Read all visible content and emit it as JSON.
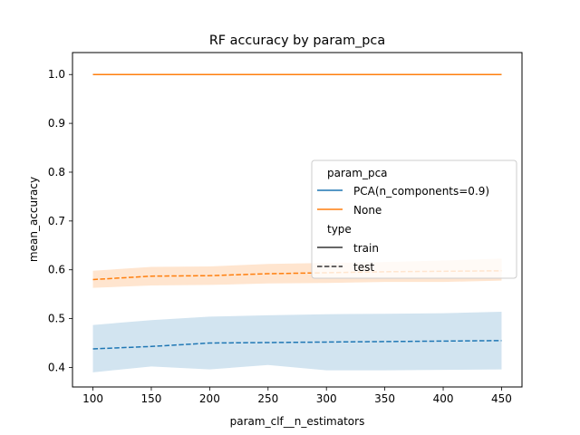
{
  "chart_data": {
    "type": "line",
    "title": "RF accuracy by param_pca",
    "xlabel": "param_clf__n_estimators",
    "ylabel": "mean_accuracy",
    "xlim": [
      82.5,
      467.5
    ],
    "ylim": [
      0.36,
      1.045
    ],
    "x_ticks": [
      100,
      150,
      200,
      250,
      300,
      350,
      400,
      450
    ],
    "x_tick_labels": [
      "100",
      "150",
      "200",
      "250",
      "300",
      "350",
      "400",
      "450"
    ],
    "y_ticks": [
      0.4,
      0.5,
      0.6,
      0.7,
      0.8,
      0.9,
      1.0
    ],
    "y_tick_labels": [
      "0.4",
      "0.5",
      "0.6",
      "0.7",
      "0.8",
      "0.9",
      "1.0"
    ],
    "grid": false,
    "x": [
      100,
      150,
      200,
      250,
      300,
      350,
      400,
      450
    ],
    "series": [
      {
        "name": "PCA(n_components=0.9)",
        "type": "train",
        "color": "#1f77b4",
        "dash": "solid",
        "values": [
          1.0,
          1.0,
          1.0,
          1.0,
          1.0,
          1.0,
          1.0,
          1.0
        ]
      },
      {
        "name": "None",
        "type": "train",
        "color": "#ff7f0e",
        "dash": "solid",
        "values": [
          1.0,
          1.0,
          1.0,
          1.0,
          1.0,
          1.0,
          1.0,
          1.0
        ]
      },
      {
        "name": "PCA(n_components=0.9)",
        "type": "test",
        "color": "#1f77b4",
        "dash": "dashed",
        "values": [
          0.438,
          0.443,
          0.45,
          0.451,
          0.452,
          0.453,
          0.454,
          0.455
        ],
        "ci_low": [
          0.39,
          0.402,
          0.396,
          0.405,
          0.394,
          0.394,
          0.395,
          0.396
        ],
        "ci_high": [
          0.487,
          0.497,
          0.504,
          0.507,
          0.509,
          0.51,
          0.511,
          0.514
        ]
      },
      {
        "name": "None",
        "type": "test",
        "color": "#ff7f0e",
        "dash": "dashed",
        "values": [
          0.58,
          0.587,
          0.588,
          0.592,
          0.594,
          0.596,
          0.597,
          0.598
        ],
        "ci_low": [
          0.563,
          0.568,
          0.569,
          0.572,
          0.573,
          0.575,
          0.575,
          0.578
        ],
        "ci_high": [
          0.598,
          0.606,
          0.607,
          0.612,
          0.614,
          0.616,
          0.619,
          0.623
        ]
      }
    ],
    "legend": {
      "placement": "center-right",
      "hue_title": "param_pca",
      "hue_entries": [
        {
          "label": "PCA(n_components=0.9)",
          "color": "#1f77b4"
        },
        {
          "label": "None",
          "color": "#ff7f0e"
        }
      ],
      "style_title": "type",
      "style_entries": [
        {
          "label": "train",
          "dash": "solid"
        },
        {
          "label": "test",
          "dash": "dashed"
        }
      ]
    }
  }
}
